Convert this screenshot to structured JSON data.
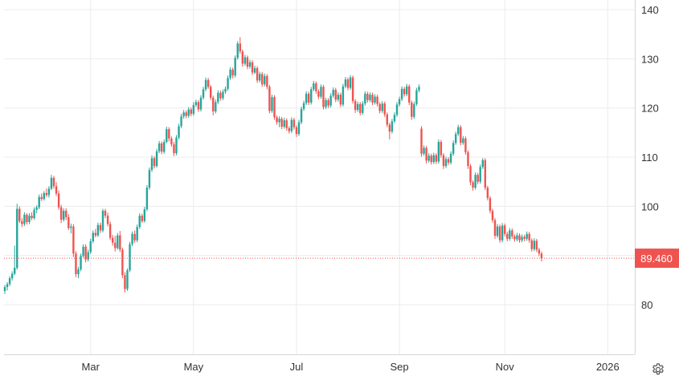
{
  "chart_data": {
    "type": "candlestick",
    "ylim": [
      70,
      140
    ],
    "y_ticks": [
      80,
      90,
      100,
      110,
      120,
      130,
      140
    ],
    "y_tick_labels": [
      "80",
      "",
      "100",
      "110",
      "120",
      "130",
      "140"
    ],
    "x_ticks": [
      {
        "label": "Mar",
        "index": 35
      },
      {
        "label": "May",
        "index": 77
      },
      {
        "label": "Jul",
        "index": 119
      },
      {
        "label": "Sep",
        "index": 161
      },
      {
        "label": "Nov",
        "index": 204
      },
      {
        "label": "2026",
        "index": 246
      }
    ],
    "grid": true,
    "last_price": 89.46,
    "last_price_label": "89.460",
    "up_color": "#26a69a",
    "down_color": "#ef5350",
    "price_line_color": "#ef5350",
    "gap_after_index": 197,
    "candles": [
      [
        82.8,
        84.0,
        82.2,
        83.6
      ],
      [
        83.6,
        84.6,
        82.9,
        84.2
      ],
      [
        84.2,
        85.8,
        83.8,
        85.4
      ],
      [
        85.4,
        86.8,
        84.9,
        86.3
      ],
      [
        86.3,
        92.0,
        86.0,
        87.5
      ],
      [
        87.5,
        100.5,
        87.1,
        99.5
      ],
      [
        99.5,
        100.0,
        96.6,
        97.0
      ],
      [
        97.0,
        97.6,
        95.8,
        96.4
      ],
      [
        96.4,
        98.8,
        96.0,
        98.3
      ],
      [
        98.3,
        98.6,
        96.3,
        96.8
      ],
      [
        96.8,
        98.6,
        96.4,
        98.1
      ],
      [
        98.1,
        98.8,
        97.2,
        97.6
      ],
      [
        97.6,
        99.8,
        97.3,
        99.3
      ],
      [
        99.3,
        100.2,
        98.6,
        99.8
      ],
      [
        99.8,
        102.4,
        99.4,
        101.9
      ],
      [
        101.9,
        102.6,
        101.1,
        101.5
      ],
      [
        101.5,
        103.1,
        101.2,
        102.7
      ],
      [
        102.7,
        103.6,
        101.9,
        102.3
      ],
      [
        102.3,
        104.1,
        101.8,
        103.6
      ],
      [
        103.6,
        106.4,
        103.3,
        105.8
      ],
      [
        105.8,
        106.2,
        103.6,
        104.1
      ],
      [
        104.1,
        104.9,
        102.1,
        102.6
      ],
      [
        102.6,
        103.2,
        99.3,
        99.8
      ],
      [
        99.8,
        100.3,
        96.6,
        97.3
      ],
      [
        97.3,
        99.6,
        96.9,
        99.1
      ],
      [
        99.1,
        99.6,
        97.2,
        97.8
      ],
      [
        97.8,
        98.4,
        95.2,
        95.6
      ],
      [
        95.6,
        96.5,
        94.5,
        95.9
      ],
      [
        95.9,
        96.4,
        89.7,
        90.4
      ],
      [
        90.4,
        90.9,
        85.6,
        86.2
      ],
      [
        86.2,
        87.7,
        85.4,
        87.2
      ],
      [
        87.2,
        90.4,
        86.8,
        89.9
      ],
      [
        89.9,
        92.3,
        89.6,
        91.8
      ],
      [
        91.8,
        92.3,
        88.6,
        89.2
      ],
      [
        89.2,
        91.2,
        88.8,
        90.7
      ],
      [
        90.7,
        93.4,
        90.3,
        92.9
      ],
      [
        92.9,
        95.1,
        92.5,
        94.6
      ],
      [
        94.6,
        95.4,
        93.7,
        94.1
      ],
      [
        94.1,
        96.7,
        93.8,
        96.2
      ],
      [
        96.2,
        96.7,
        94.6,
        95.1
      ],
      [
        95.1,
        99.5,
        94.7,
        99.1
      ],
      [
        99.1,
        99.5,
        97.6,
        98.1
      ],
      [
        98.1,
        98.7,
        95.9,
        96.4
      ],
      [
        96.4,
        96.9,
        93.1,
        93.6
      ],
      [
        93.6,
        94.2,
        92.0,
        92.6
      ],
      [
        92.6,
        94.0,
        90.8,
        91.5
      ],
      [
        91.5,
        94.6,
        91.2,
        94.1
      ],
      [
        94.1,
        95.0,
        90.7,
        91.2
      ],
      [
        91.2,
        91.6,
        85.4,
        86.0
      ],
      [
        86.0,
        86.6,
        82.5,
        83.2
      ],
      [
        83.2,
        87.4,
        82.8,
        87.0
      ],
      [
        87.0,
        92.8,
        86.6,
        92.3
      ],
      [
        92.3,
        94.9,
        91.9,
        94.4
      ],
      [
        94.4,
        95.1,
        92.6,
        93.1
      ],
      [
        93.1,
        96.3,
        92.7,
        95.8
      ],
      [
        95.8,
        98.6,
        95.4,
        98.1
      ],
      [
        98.1,
        98.5,
        96.6,
        97.0
      ],
      [
        97.0,
        99.9,
        96.7,
        99.4
      ],
      [
        99.4,
        104.3,
        99.0,
        103.8
      ],
      [
        103.8,
        107.9,
        103.4,
        107.4
      ],
      [
        107.4,
        110.4,
        107.0,
        109.8
      ],
      [
        109.8,
        110.2,
        107.7,
        108.2
      ],
      [
        108.2,
        111.7,
        107.9,
        111.2
      ],
      [
        111.2,
        113.3,
        110.8,
        112.8
      ],
      [
        112.8,
        113.2,
        110.6,
        111.1
      ],
      [
        111.1,
        113.6,
        110.7,
        113.1
      ],
      [
        113.1,
        116.2,
        112.8,
        115.7
      ],
      [
        115.7,
        116.1,
        113.2,
        113.8
      ],
      [
        113.8,
        114.2,
        112.1,
        112.6
      ],
      [
        112.6,
        113.1,
        110.2,
        110.8
      ],
      [
        110.8,
        114.5,
        110.4,
        114.0
      ],
      [
        114.0,
        116.8,
        113.6,
        116.3
      ],
      [
        116.3,
        118.8,
        115.9,
        118.3
      ],
      [
        118.3,
        119.6,
        117.8,
        119.1
      ],
      [
        119.1,
        119.5,
        117.9,
        118.4
      ],
      [
        118.4,
        120.2,
        118.0,
        119.7
      ],
      [
        119.7,
        120.1,
        118.3,
        118.8
      ],
      [
        118.8,
        121.2,
        118.4,
        120.6
      ],
      [
        120.6,
        121.7,
        120.2,
        121.2
      ],
      [
        121.2,
        121.6,
        119.2,
        119.7
      ],
      [
        119.7,
        122.6,
        119.3,
        122.1
      ],
      [
        122.1,
        124.3,
        121.7,
        123.8
      ],
      [
        123.8,
        126.2,
        123.4,
        125.7
      ],
      [
        125.7,
        126.1,
        123.9,
        124.3
      ],
      [
        124.3,
        124.7,
        121.6,
        122.1
      ],
      [
        122.1,
        122.5,
        118.5,
        119.3
      ],
      [
        119.3,
        121.7,
        118.9,
        121.2
      ],
      [
        121.2,
        123.6,
        120.8,
        123.1
      ],
      [
        123.1,
        123.5,
        121.5,
        122.0
      ],
      [
        122.0,
        123.8,
        121.6,
        123.3
      ],
      [
        123.3,
        124.4,
        122.9,
        123.9
      ],
      [
        123.9,
        126.6,
        123.5,
        126.1
      ],
      [
        126.1,
        128.3,
        125.7,
        127.8
      ],
      [
        127.8,
        128.2,
        126.0,
        126.6
      ],
      [
        126.6,
        130.7,
        126.2,
        130.2
      ],
      [
        130.2,
        133.6,
        129.8,
        133.1
      ],
      [
        133.1,
        134.4,
        131.0,
        131.5
      ],
      [
        131.5,
        131.9,
        128.4,
        129.0
      ],
      [
        129.0,
        130.8,
        128.6,
        130.3
      ],
      [
        130.3,
        130.7,
        127.9,
        128.4
      ],
      [
        128.4,
        129.8,
        128.0,
        129.3
      ],
      [
        129.3,
        129.7,
        126.7,
        127.2
      ],
      [
        127.2,
        128.6,
        126.9,
        128.1
      ],
      [
        128.1,
        128.5,
        125.1,
        125.6
      ],
      [
        125.6,
        127.4,
        125.2,
        126.9
      ],
      [
        126.9,
        127.3,
        124.3,
        124.8
      ],
      [
        124.8,
        127.0,
        124.4,
        126.5
      ],
      [
        126.5,
        126.9,
        123.8,
        124.3
      ],
      [
        124.3,
        124.7,
        118.9,
        119.4
      ],
      [
        119.4,
        122.7,
        119.0,
        122.2
      ],
      [
        122.2,
        122.6,
        117.6,
        118.1
      ],
      [
        118.1,
        118.5,
        116.6,
        117.1
      ],
      [
        117.1,
        118.3,
        116.1,
        117.8
      ],
      [
        117.8,
        118.2,
        115.7,
        116.2
      ],
      [
        116.2,
        118.0,
        115.8,
        117.5
      ],
      [
        117.5,
        117.9,
        115.4,
        115.9
      ],
      [
        115.9,
        116.3,
        114.8,
        115.3
      ],
      [
        115.3,
        118.1,
        114.9,
        117.6
      ],
      [
        117.6,
        118.0,
        115.6,
        116.1
      ],
      [
        116.1,
        116.5,
        114.1,
        114.7
      ],
      [
        114.7,
        117.6,
        114.3,
        117.1
      ],
      [
        117.1,
        120.3,
        116.7,
        119.8
      ],
      [
        119.8,
        121.5,
        119.4,
        121.0
      ],
      [
        121.0,
        123.4,
        120.6,
        122.9
      ],
      [
        122.9,
        123.3,
        120.6,
        121.1
      ],
      [
        121.1,
        124.3,
        120.7,
        123.8
      ],
      [
        123.8,
        125.5,
        123.4,
        125.0
      ],
      [
        125.0,
        125.4,
        122.9,
        123.4
      ],
      [
        123.4,
        123.8,
        121.8,
        122.3
      ],
      [
        122.3,
        124.8,
        121.9,
        124.3
      ],
      [
        124.3,
        124.7,
        119.7,
        120.2
      ],
      [
        120.2,
        122.1,
        119.8,
        121.6
      ],
      [
        121.6,
        122.0,
        120.0,
        120.5
      ],
      [
        120.5,
        123.0,
        120.1,
        122.5
      ],
      [
        122.5,
        124.2,
        122.1,
        123.7
      ],
      [
        123.7,
        124.1,
        121.2,
        121.7
      ],
      [
        121.7,
        123.2,
        121.3,
        122.7
      ],
      [
        122.7,
        123.1,
        120.2,
        120.7
      ],
      [
        120.7,
        124.9,
        120.3,
        124.4
      ],
      [
        124.4,
        126.3,
        124.0,
        125.8
      ],
      [
        125.8,
        126.2,
        123.6,
        124.1
      ],
      [
        124.1,
        126.7,
        123.7,
        126.2
      ],
      [
        126.2,
        126.6,
        120.9,
        121.4
      ],
      [
        121.4,
        121.8,
        119.0,
        119.6
      ],
      [
        119.6,
        121.3,
        119.2,
        120.8
      ],
      [
        120.8,
        121.2,
        118.5,
        119.0
      ],
      [
        119.0,
        121.4,
        118.6,
        120.9
      ],
      [
        120.9,
        123.4,
        120.5,
        122.9
      ],
      [
        122.9,
        123.3,
        121.1,
        121.6
      ],
      [
        121.6,
        123.2,
        121.2,
        122.7
      ],
      [
        122.7,
        123.1,
        120.6,
        121.1
      ],
      [
        121.1,
        122.8,
        120.7,
        122.3
      ],
      [
        122.3,
        122.7,
        120.3,
        120.8
      ],
      [
        120.8,
        121.2,
        118.9,
        119.4
      ],
      [
        119.4,
        121.4,
        119.0,
        120.9
      ],
      [
        120.9,
        121.3,
        118.2,
        118.7
      ],
      [
        118.7,
        119.1,
        116.1,
        116.6
      ],
      [
        116.6,
        117.0,
        113.6,
        115.2
      ],
      [
        115.2,
        117.8,
        114.8,
        117.3
      ],
      [
        117.3,
        119.1,
        116.9,
        118.6
      ],
      [
        118.6,
        121.2,
        118.2,
        120.7
      ],
      [
        120.7,
        122.3,
        120.3,
        121.8
      ],
      [
        121.8,
        124.4,
        121.4,
        123.9
      ],
      [
        123.9,
        124.3,
        122.3,
        122.8
      ],
      [
        122.8,
        124.9,
        122.4,
        124.4
      ],
      [
        124.4,
        124.8,
        120.6,
        121.1
      ],
      [
        121.1,
        121.5,
        117.6,
        118.2
      ],
      [
        118.2,
        121.3,
        117.8,
        120.8
      ],
      [
        120.8,
        124.1,
        120.4,
        123.6
      ],
      [
        123.6,
        124.8,
        123.2,
        124.3
      ],
      [
        115.8,
        116.3,
        110.1,
        110.7
      ],
      [
        110.7,
        112.4,
        110.3,
        111.9
      ],
      [
        111.9,
        112.3,
        108.7,
        109.3
      ],
      [
        109.3,
        110.8,
        108.9,
        110.3
      ],
      [
        110.3,
        110.7,
        108.5,
        109.0
      ],
      [
        109.0,
        110.9,
        108.6,
        110.4
      ],
      [
        110.4,
        110.8,
        108.6,
        109.1
      ],
      [
        109.1,
        113.6,
        108.7,
        113.1
      ],
      [
        113.1,
        113.5,
        109.9,
        110.4
      ],
      [
        110.4,
        110.8,
        107.6,
        108.2
      ],
      [
        108.2,
        110.1,
        107.8,
        109.6
      ],
      [
        109.6,
        110.0,
        108.4,
        108.9
      ],
      [
        108.9,
        111.2,
        108.5,
        110.7
      ],
      [
        110.7,
        113.4,
        110.3,
        112.9
      ],
      [
        112.9,
        115.2,
        112.5,
        114.7
      ],
      [
        114.7,
        116.6,
        114.3,
        116.1
      ],
      [
        116.1,
        116.5,
        112.4,
        112.9
      ],
      [
        112.9,
        114.3,
        112.5,
        113.8
      ],
      [
        113.8,
        114.2,
        110.5,
        111.0
      ],
      [
        111.0,
        111.4,
        107.6,
        108.2
      ],
      [
        108.2,
        108.6,
        104.3,
        104.9
      ],
      [
        104.9,
        105.3,
        103.2,
        103.8
      ],
      [
        103.8,
        106.9,
        103.4,
        106.4
      ],
      [
        106.4,
        106.8,
        104.5,
        105.0
      ],
      [
        105.0,
        108.5,
        104.6,
        108.0
      ],
      [
        108.0,
        109.8,
        107.6,
        109.4
      ],
      [
        109.4,
        109.8,
        103.3,
        103.8
      ],
      [
        103.8,
        104.2,
        101.2,
        101.7
      ],
      [
        101.7,
        102.1,
        98.6,
        99.1
      ],
      [
        99.1,
        99.5,
        96.7,
        97.2
      ],
      [
        97.2,
        97.6,
        93.4,
        94.0
      ],
      [
        94.0,
        96.4,
        93.6,
        95.9
      ],
      [
        95.9,
        96.3,
        92.6,
        93.1
      ],
      [
        93.1,
        96.6,
        92.7,
        96.1
      ],
      [
        96.1,
        96.5,
        93.9,
        94.4
      ],
      [
        94.4,
        94.8,
        92.9,
        93.4
      ],
      [
        93.4,
        95.6,
        93.0,
        95.1
      ],
      [
        95.1,
        95.5,
        93.4,
        93.9
      ],
      [
        93.9,
        94.3,
        92.8,
        93.3
      ],
      [
        93.3,
        94.6,
        92.9,
        94.1
      ],
      [
        94.1,
        94.5,
        92.6,
        93.1
      ],
      [
        93.1,
        94.3,
        92.7,
        93.8
      ],
      [
        93.8,
        94.2,
        92.9,
        93.4
      ],
      [
        93.4,
        94.9,
        93.0,
        94.4
      ],
      [
        94.4,
        94.8,
        92.6,
        93.1
      ],
      [
        93.1,
        93.5,
        90.8,
        91.3
      ],
      [
        91.3,
        93.5,
        90.9,
        93.0
      ],
      [
        93.0,
        93.4,
        90.7,
        91.2
      ],
      [
        91.2,
        91.6,
        89.9,
        90.4
      ],
      [
        90.4,
        90.8,
        88.8,
        89.46
      ]
    ]
  },
  "settings": {
    "icon": "gear-icon"
  }
}
